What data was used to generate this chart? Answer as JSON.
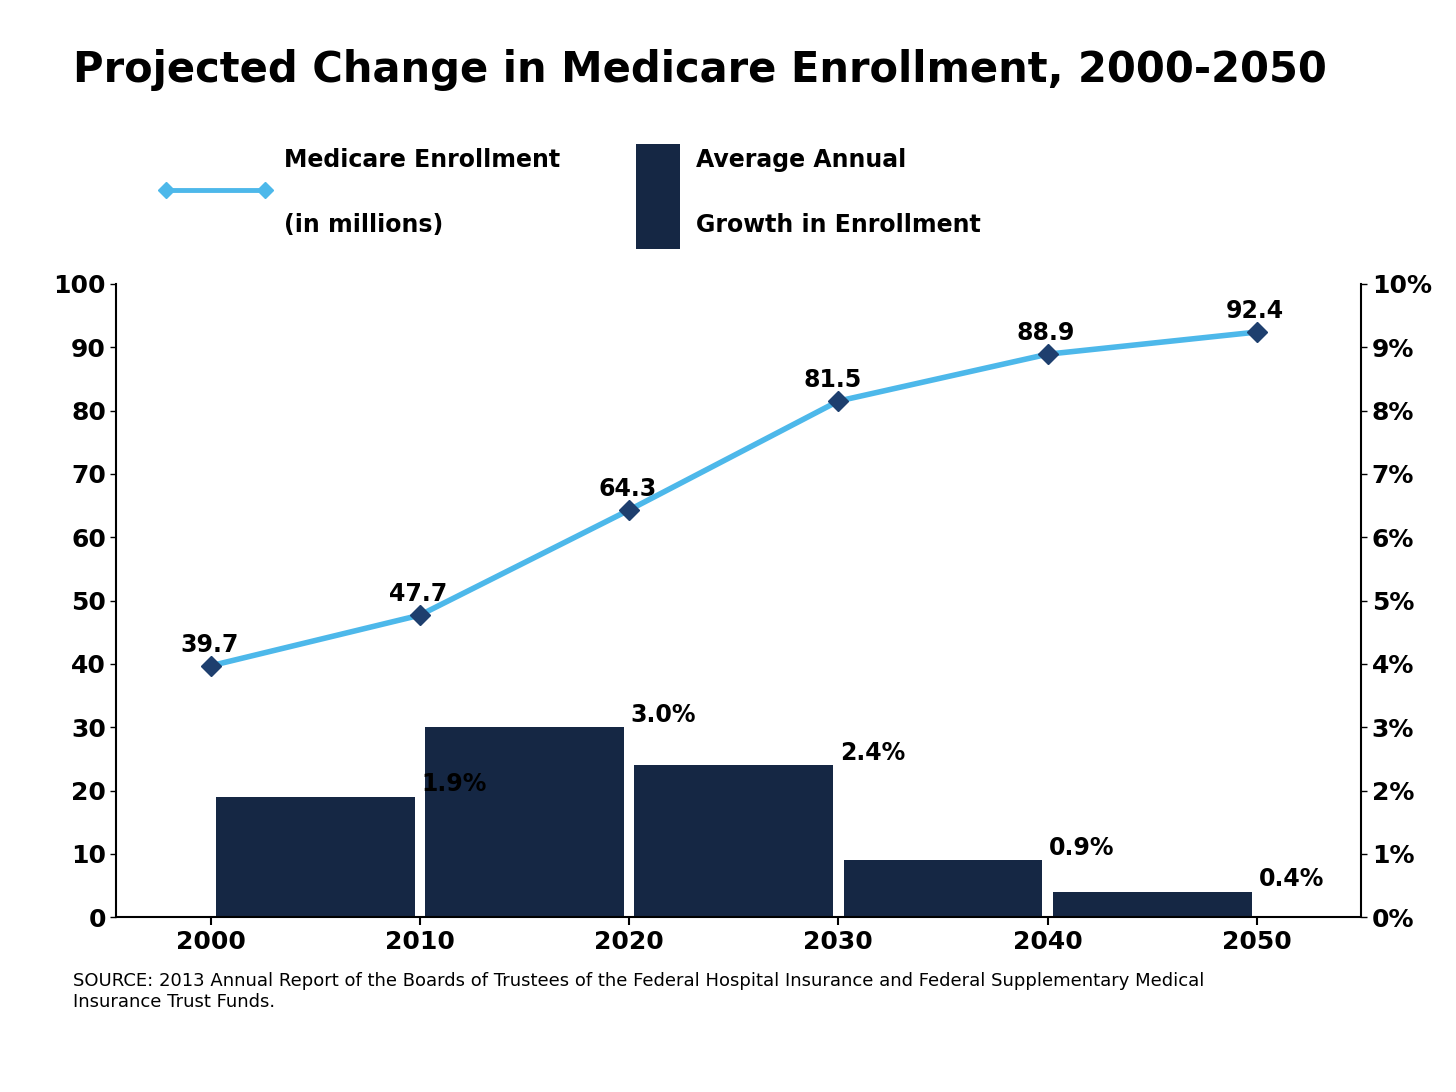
{
  "title": "Projected Change in Medicare Enrollment, 2000-2050",
  "line_years": [
    2000,
    2010,
    2020,
    2030,
    2040,
    2050
  ],
  "line_values": [
    39.7,
    47.7,
    64.3,
    81.5,
    88.9,
    92.4
  ],
  "line_labels": [
    "39.7",
    "47.7",
    "64.3",
    "81.5",
    "88.9",
    "92.4"
  ],
  "bar_centers": [
    2005,
    2015,
    2025,
    2035,
    2045,
    2052
  ],
  "bar_values_pct": [
    1.9,
    3.0,
    2.4,
    0.9,
    0.4,
    0.0
  ],
  "bar_labels": [
    "1.9%",
    "3.0%",
    "2.4%",
    "0.9%",
    "0.4%",
    ""
  ],
  "bar_widths": [
    9.5,
    9.5,
    9.5,
    9.5,
    9.5,
    3.0
  ],
  "bar_color": "#152744",
  "line_color": "#4db8ea",
  "marker_color": "#1e3f6e",
  "left_ylim": [
    0,
    100
  ],
  "right_ylim": [
    0,
    10
  ],
  "left_yticks": [
    0,
    10,
    20,
    30,
    40,
    50,
    60,
    70,
    80,
    90,
    100
  ],
  "right_yticks": [
    0,
    1,
    2,
    3,
    4,
    5,
    6,
    7,
    8,
    9,
    10
  ],
  "xlim": [
    1995.5,
    2055
  ],
  "xticks": [
    2000,
    2010,
    2020,
    2030,
    2040,
    2050
  ],
  "legend_line_label1": "Medicare Enrollment",
  "legend_line_label2": "(in millions)",
  "legend_bar_label1": "Average Annual",
  "legend_bar_label2": "Growth in Enrollment",
  "source_text": "SOURCE: 2013 Annual Report of the Boards of Trustees of the Federal Hospital Insurance and Federal Supplementary Medical\nInsurance Trust Funds.",
  "background_color": "#ffffff",
  "title_fontsize": 30,
  "tick_fontsize": 18,
  "label_fontsize": 16,
  "legend_fontsize": 17,
  "source_fontsize": 13
}
